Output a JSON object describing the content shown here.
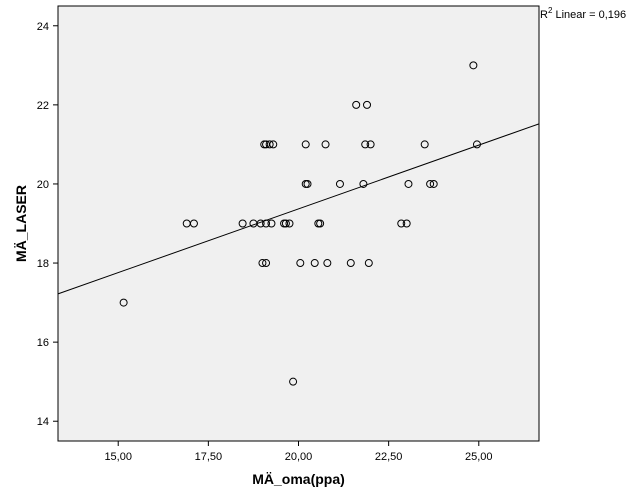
{
  "chart_data": {
    "type": "scatter",
    "xlabel": "MÄ_oma(ppa)",
    "ylabel": "MÄ_LASER",
    "xlim": [
      13.33,
      26.67
    ],
    "ylim": [
      13.5,
      24.5
    ],
    "x_ticks": [
      "15,00",
      "17,50",
      "20,00",
      "22,50",
      "25,00"
    ],
    "x_tick_values": [
      15,
      17.5,
      20,
      22.5,
      25
    ],
    "y_ticks": [
      "14",
      "16",
      "18",
      "20",
      "22",
      "24"
    ],
    "y_tick_values": [
      14,
      16,
      18,
      20,
      22,
      24
    ],
    "annotation": {
      "r_symbol": "R",
      "superscript": "2",
      "text": " Linear = 0,196"
    },
    "fit_line": {
      "x": [
        13.33,
        26.67
      ],
      "y": [
        17.22,
        21.52
      ]
    },
    "points": [
      {
        "x": 15.15,
        "y": 17
      },
      {
        "x": 16.9,
        "y": 19
      },
      {
        "x": 17.1,
        "y": 19
      },
      {
        "x": 18.45,
        "y": 19
      },
      {
        "x": 18.75,
        "y": 19
      },
      {
        "x": 18.95,
        "y": 19
      },
      {
        "x": 19.1,
        "y": 19
      },
      {
        "x": 19.25,
        "y": 19
      },
      {
        "x": 19.6,
        "y": 19
      },
      {
        "x": 19.65,
        "y": 19
      },
      {
        "x": 19.75,
        "y": 19
      },
      {
        "x": 19.05,
        "y": 21
      },
      {
        "x": 19.1,
        "y": 21
      },
      {
        "x": 19.2,
        "y": 21
      },
      {
        "x": 19.3,
        "y": 21
      },
      {
        "x": 19.0,
        "y": 18
      },
      {
        "x": 19.1,
        "y": 18
      },
      {
        "x": 19.85,
        "y": 15
      },
      {
        "x": 20.05,
        "y": 18
      },
      {
        "x": 20.2,
        "y": 20
      },
      {
        "x": 20.25,
        "y": 20
      },
      {
        "x": 20.2,
        "y": 21
      },
      {
        "x": 20.45,
        "y": 18
      },
      {
        "x": 20.55,
        "y": 19
      },
      {
        "x": 20.6,
        "y": 19
      },
      {
        "x": 20.75,
        "y": 21
      },
      {
        "x": 20.8,
        "y": 18
      },
      {
        "x": 21.15,
        "y": 20
      },
      {
        "x": 21.45,
        "y": 18
      },
      {
        "x": 21.6,
        "y": 22
      },
      {
        "x": 21.8,
        "y": 20
      },
      {
        "x": 21.85,
        "y": 21
      },
      {
        "x": 21.9,
        "y": 22
      },
      {
        "x": 21.95,
        "y": 18
      },
      {
        "x": 22.0,
        "y": 21
      },
      {
        "x": 22.85,
        "y": 19
      },
      {
        "x": 23.0,
        "y": 19
      },
      {
        "x": 23.05,
        "y": 20
      },
      {
        "x": 23.5,
        "y": 21
      },
      {
        "x": 23.65,
        "y": 20
      },
      {
        "x": 23.75,
        "y": 20
      },
      {
        "x": 24.85,
        "y": 23
      },
      {
        "x": 24.95,
        "y": 21
      }
    ],
    "colors": {
      "plot_background": "#f0f0f0",
      "marker_stroke": "#000000",
      "line": "#000000"
    }
  }
}
